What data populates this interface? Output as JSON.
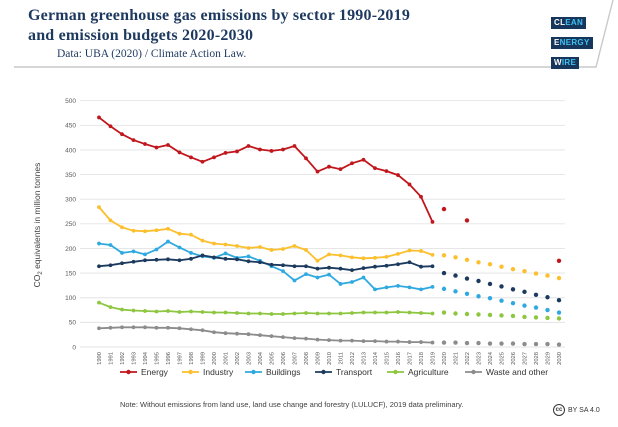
{
  "header": {
    "title_line1": "German greenhouse gas emissions by sector 1990-2019",
    "title_line2": "and emission budgets 2020-2030",
    "subtitle": "Data: UBA (2020) / Climate Action Law.",
    "logo": {
      "rows": [
        {
          "highlight": "CL",
          "rest": "EAN"
        },
        {
          "highlight": "E",
          "rest": "NERGY"
        },
        {
          "highlight": "W",
          "rest": "IRE"
        }
      ]
    }
  },
  "chart_data": {
    "type": "line",
    "title": "German greenhouse gas emissions by sector 1990-2019 and emission budgets 2020-2030",
    "xlabel": "",
    "ylabel": "CO2 equivalents in million tonnes",
    "ylim": [
      0,
      500
    ],
    "ytick_step": 50,
    "yticks": [
      0,
      50,
      100,
      150,
      200,
      250,
      300,
      350,
      400,
      450,
      500
    ],
    "grid": true,
    "legend_position": "bottom",
    "x_historical": [
      1990,
      1991,
      1992,
      1993,
      1994,
      1995,
      1996,
      1997,
      1998,
      1999,
      2000,
      2001,
      2002,
      2003,
      2004,
      2005,
      2006,
      2007,
      2008,
      2009,
      2010,
      2011,
      2012,
      2013,
      2014,
      2015,
      2016,
      2017,
      2018,
      2019
    ],
    "x_budget": [
      2020,
      2021,
      2022,
      2023,
      2024,
      2025,
      2026,
      2027,
      2028,
      2029,
      2030
    ],
    "series": [
      {
        "name": "Energy",
        "color": "#c0161c",
        "historical": [
          466,
          448,
          432,
          420,
          412,
          405,
          410,
          395,
          385,
          376,
          385,
          394,
          397,
          408,
          401,
          398,
          401,
          408,
          383,
          356,
          366,
          361,
          373,
          380,
          363,
          357,
          349,
          330,
          305,
          254
        ],
        "budget_x": [
          2020,
          2022,
          2030
        ],
        "budget": [
          280,
          257,
          175
        ]
      },
      {
        "name": "Industry",
        "color": "#fcbf2d",
        "historical": [
          284,
          257,
          243,
          236,
          235,
          237,
          240,
          230,
          228,
          216,
          210,
          208,
          205,
          201,
          203,
          197,
          199,
          205,
          197,
          175,
          188,
          186,
          182,
          180,
          181,
          183,
          189,
          196,
          195,
          187
        ],
        "budget_x": [
          2020,
          2021,
          2022,
          2023,
          2024,
          2025,
          2026,
          2027,
          2028,
          2029,
          2030
        ],
        "budget": [
          186,
          182,
          177,
          172,
          168,
          163,
          158,
          154,
          149,
          145,
          140
        ]
      },
      {
        "name": "Buildings",
        "color": "#2fa9e0",
        "historical": [
          210,
          207,
          191,
          194,
          188,
          198,
          214,
          202,
          191,
          184,
          181,
          190,
          181,
          184,
          175,
          164,
          154,
          135,
          148,
          141,
          147,
          128,
          132,
          141,
          117,
          121,
          124,
          121,
          117,
          122
        ],
        "budget_x": [
          2020,
          2021,
          2022,
          2023,
          2024,
          2025,
          2026,
          2027,
          2028,
          2029,
          2030
        ],
        "budget": [
          118,
          113,
          108,
          103,
          99,
          94,
          89,
          84,
          80,
          75,
          70
        ]
      },
      {
        "name": "Transport",
        "color": "#1c3a5e",
        "historical": [
          164,
          166,
          170,
          173,
          176,
          177,
          178,
          176,
          179,
          186,
          182,
          179,
          178,
          174,
          172,
          167,
          166,
          164,
          164,
          159,
          161,
          159,
          156,
          160,
          163,
          165,
          168,
          172,
          163,
          164
        ],
        "budget_x": [
          2020,
          2021,
          2022,
          2023,
          2024,
          2025,
          2026,
          2027,
          2028,
          2029,
          2030
        ],
        "budget": [
          150,
          145,
          139,
          134,
          128,
          123,
          117,
          112,
          106,
          101,
          95
        ]
      },
      {
        "name": "Agriculture",
        "color": "#8dc63f",
        "historical": [
          90,
          81,
          76,
          74,
          73,
          72,
          73,
          71,
          72,
          71,
          70,
          70,
          69,
          68,
          68,
          67,
          67,
          68,
          69,
          68,
          68,
          68,
          69,
          70,
          70,
          70,
          71,
          70,
          69,
          68
        ],
        "budget_x": [
          2020,
          2021,
          2022,
          2023,
          2024,
          2025,
          2026,
          2027,
          2028,
          2029,
          2030
        ],
        "budget": [
          70,
          68,
          67,
          66,
          65,
          64,
          63,
          61,
          60,
          59,
          58
        ]
      },
      {
        "name": "Waste and other",
        "color": "#8c8c8c",
        "historical": [
          38,
          39,
          40,
          40,
          40,
          39,
          39,
          38,
          36,
          34,
          30,
          28,
          27,
          26,
          24,
          22,
          20,
          18,
          17,
          15,
          14,
          13,
          13,
          12,
          12,
          11,
          11,
          10,
          10,
          9
        ],
        "budget_x": [
          2020,
          2021,
          2022,
          2023,
          2024,
          2025,
          2026,
          2027,
          2028,
          2029,
          2030
        ],
        "budget": [
          9,
          9,
          8,
          8,
          7,
          7,
          7,
          6,
          6,
          6,
          5
        ]
      }
    ]
  },
  "footer": {
    "note": "Note: Without emissions from land use, land use change and forestry (LULUCF), 2019 data preliminary.",
    "cc_icon": "cc",
    "license": "BY SA 4.0"
  }
}
